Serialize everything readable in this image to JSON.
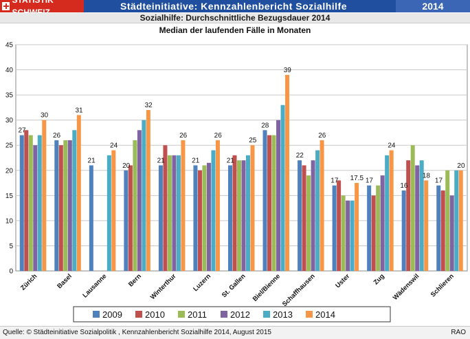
{
  "header": {
    "logo_text": "STATISTIK SCHWEIZ",
    "app_title": "Städteinitiative: Kennzahlenbericht Sozialhilfe",
    "year": "2014",
    "subtitle": "Sozialhilfe: Durchschnittliche Bezugsdauer 2014"
  },
  "colors": {
    "header_blue": "#1f4f9e",
    "logo_red": "#d52b1e",
    "series": [
      "#4f81bd",
      "#c0504d",
      "#9bbb59",
      "#8064a2",
      "#4bacc6",
      "#f79646"
    ]
  },
  "chart_data": {
    "type": "bar",
    "title": "Median der laufenden Fälle in Monaten",
    "xlabel": "",
    "ylabel": "",
    "ylim": [
      0,
      45
    ],
    "yticks": [
      0,
      5,
      10,
      15,
      20,
      25,
      30,
      35,
      40,
      45
    ],
    "grid": true,
    "legend_placement": "bottom",
    "categories": [
      "Zürich",
      "Basel",
      "Lausanne",
      "Bern",
      "Winterthur",
      "Luzern",
      "St. Gallen",
      "Biel/Bienne",
      "Schaffhausen",
      "Uster",
      "Zug",
      "Wädenswil",
      "Schlieren"
    ],
    "series": [
      {
        "name": "2009",
        "values": [
          27,
          26,
          21,
          20,
          21,
          21,
          21,
          28,
          22,
          17,
          17,
          16,
          17
        ]
      },
      {
        "name": "2010",
        "values": [
          28,
          25,
          null,
          21,
          25,
          20,
          23,
          27,
          21,
          18,
          15,
          22,
          16
        ]
      },
      {
        "name": "2011",
        "values": [
          27,
          26,
          null,
          26,
          23,
          21,
          22,
          27,
          19,
          15,
          17,
          25,
          20
        ]
      },
      {
        "name": "2012",
        "values": [
          25,
          26,
          null,
          28,
          23,
          21.5,
          22,
          30,
          22,
          14,
          19,
          21,
          15
        ]
      },
      {
        "name": "2013",
        "values": [
          27,
          28,
          23,
          30,
          23,
          24,
          23,
          33,
          24,
          14,
          23,
          22,
          20
        ]
      },
      {
        "name": "2014",
        "values": [
          30,
          31,
          24,
          32,
          26,
          26,
          25,
          39,
          26,
          17.5,
          24,
          18,
          20
        ]
      }
    ],
    "data_labels": [
      {
        "category": "Zürich",
        "series": "2009",
        "text": "27"
      },
      {
        "category": "Zürich",
        "series": "2014",
        "text": "30"
      },
      {
        "category": "Basel",
        "series": "2009",
        "text": "26"
      },
      {
        "category": "Basel",
        "series": "2014",
        "text": "31"
      },
      {
        "category": "Lausanne",
        "series": "2009",
        "text": "21"
      },
      {
        "category": "Lausanne",
        "series": "2014",
        "text": "24"
      },
      {
        "category": "Bern",
        "series": "2009",
        "text": "20"
      },
      {
        "category": "Bern",
        "series": "2014",
        "text": "32"
      },
      {
        "category": "Winterthur",
        "series": "2009",
        "text": "21"
      },
      {
        "category": "Winterthur",
        "series": "2014",
        "text": "26"
      },
      {
        "category": "Luzern",
        "series": "2009",
        "text": "21"
      },
      {
        "category": "Luzern",
        "series": "2014",
        "text": "26"
      },
      {
        "category": "St. Gallen",
        "series": "2009",
        "text": "21"
      },
      {
        "category": "St. Gallen",
        "series": "2014",
        "text": "25"
      },
      {
        "category": "Biel/Bienne",
        "series": "2009",
        "text": "28"
      },
      {
        "category": "Biel/Bienne",
        "series": "2014",
        "text": "39"
      },
      {
        "category": "Schaffhausen",
        "series": "2009",
        "text": "22"
      },
      {
        "category": "Schaffhausen",
        "series": "2014",
        "text": "26"
      },
      {
        "category": "Uster",
        "series": "2009",
        "text": "17"
      },
      {
        "category": "Uster",
        "series": "2014",
        "text": "17.5"
      },
      {
        "category": "Zug",
        "series": "2009",
        "text": "17"
      },
      {
        "category": "Zug",
        "series": "2014",
        "text": "24"
      },
      {
        "category": "Wädenswil",
        "series": "2009",
        "text": "16"
      },
      {
        "category": "Wädenswil",
        "series": "2014",
        "text": "18"
      },
      {
        "category": "Schlieren",
        "series": "2009",
        "text": "17"
      },
      {
        "category": "Schlieren",
        "series": "2014",
        "text": "20"
      }
    ]
  },
  "footer": {
    "source": "Quelle: © Städteinitiative Sozialpolitik , Kennzahlenbericht Sozialhilfe 2014, August 2015",
    "code": "RAO"
  }
}
